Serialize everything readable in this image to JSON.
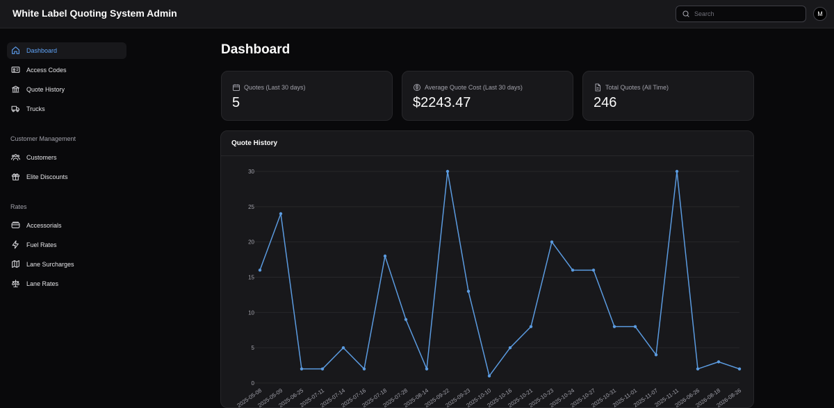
{
  "app": {
    "title": "White Label Quoting System Admin"
  },
  "search": {
    "placeholder": "Search",
    "value": ""
  },
  "user": {
    "avatar_initial": "M"
  },
  "sidebar": {
    "items": [
      {
        "label": "Dashboard",
        "icon": "home-icon",
        "active": true
      },
      {
        "label": "Access Codes",
        "icon": "id-card-icon"
      },
      {
        "label": "Quote History",
        "icon": "bank-icon"
      },
      {
        "label": "Trucks",
        "icon": "truck-icon"
      }
    ],
    "sections": [
      {
        "label": "Customer Management",
        "items": [
          {
            "label": "Customers",
            "icon": "users-icon"
          },
          {
            "label": "Elite Discounts",
            "icon": "gift-icon"
          }
        ]
      },
      {
        "label": "Rates",
        "items": [
          {
            "label": "Accessorials",
            "icon": "archive-icon"
          },
          {
            "label": "Fuel Rates",
            "icon": "lightning-icon"
          },
          {
            "label": "Lane Surcharges",
            "icon": "map-icon"
          },
          {
            "label": "Lane Rates",
            "icon": "scale-icon"
          }
        ]
      }
    ]
  },
  "main": {
    "title": "Dashboard",
    "stats": [
      {
        "label": "Quotes (Last 30 days)",
        "value": "5",
        "icon": "calendar-icon"
      },
      {
        "label": "Average Quote Cost (Last 30 days)",
        "value": "$2243.47",
        "icon": "dollar-circle-icon"
      },
      {
        "label": "Total Quotes (All Time)",
        "value": "246",
        "icon": "file-icon"
      }
    ],
    "chart_title": "Quote History"
  },
  "colors": {
    "accent": "#60a5fa",
    "line": "#5b9be0",
    "background": "#09090b",
    "card": "#18181b"
  },
  "chart_data": {
    "type": "line",
    "title": "Quote History",
    "xlabel": "",
    "ylabel": "",
    "ylim": [
      0,
      30
    ],
    "yticks": [
      0,
      5,
      10,
      15,
      20,
      25,
      30
    ],
    "grid": true,
    "x": [
      "2025-05-08",
      "2025-05-09",
      "2025-06-25",
      "2025-07-11",
      "2025-07-14",
      "2025-07-16",
      "2025-07-18",
      "2025-07-28",
      "2025-08-14",
      "2025-09-22",
      "2025-09-23",
      "2025-10-10",
      "2025-10-16",
      "2025-10-21",
      "2025-10-23",
      "2025-10-24",
      "2025-10-27",
      "2025-10-31",
      "2025-11-01",
      "2025-11-07",
      "2025-11-11",
      "2026-06-26",
      "2026-08-18",
      "2026-08-26"
    ],
    "series": [
      {
        "values": [
          16,
          24,
          2,
          2,
          5,
          2,
          18,
          9,
          2,
          30,
          13,
          1,
          5,
          8,
          20,
          16,
          16,
          8,
          8,
          4,
          30,
          2,
          3,
          2
        ]
      }
    ]
  }
}
